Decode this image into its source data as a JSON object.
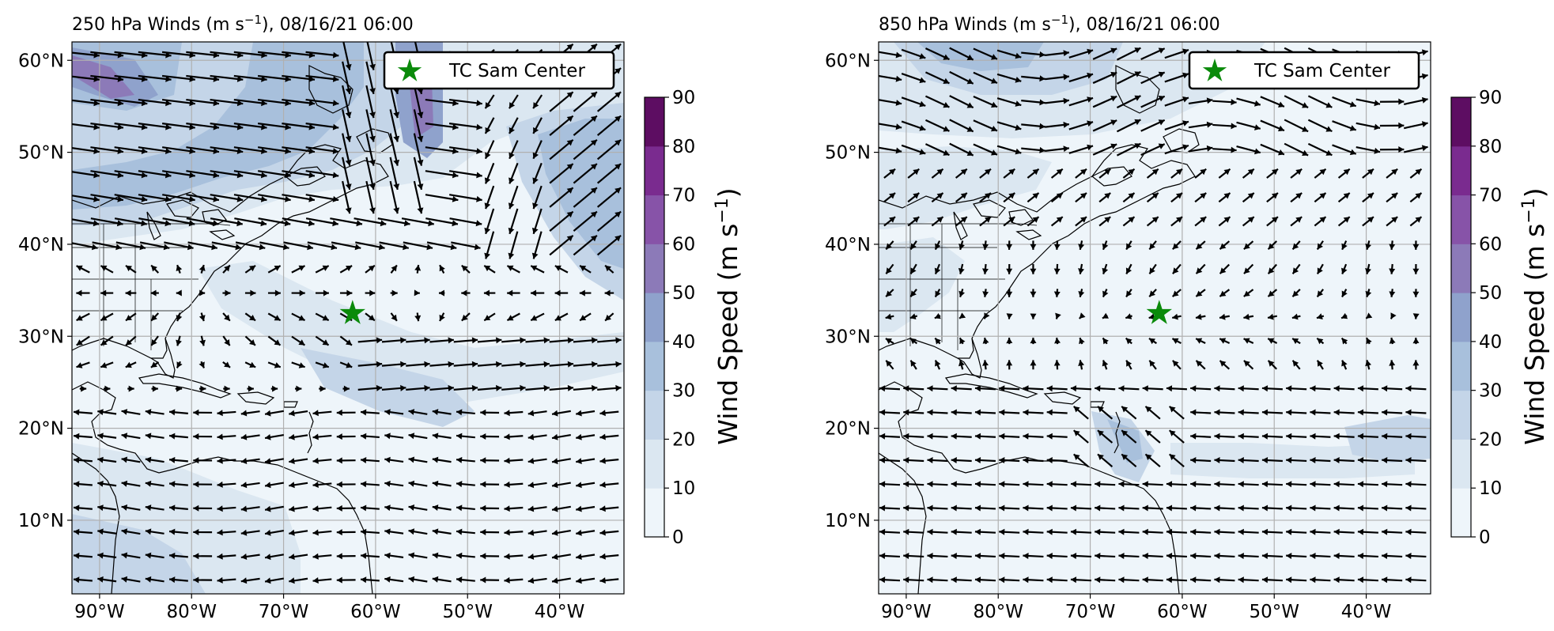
{
  "colors": {
    "levels": [
      "#eef5fa",
      "#dbe7f1",
      "#c4d5e8",
      "#a8c0dc",
      "#8fa2cc",
      "#8c7ab8",
      "#8753a8",
      "#7a2b8f",
      "#5d0d62"
    ],
    "star": "#0a8a0a",
    "grid": "#b0b0b0"
  },
  "shared": {
    "lat_ticks": [
      "10°N",
      "20°N",
      "30°N",
      "40°N",
      "50°N",
      "60°N"
    ],
    "lon_ticks": [
      "90°W",
      "80°W",
      "70°W",
      "60°W",
      "50°W",
      "40°W"
    ],
    "colorbar_ticks": [
      "0",
      "10",
      "20",
      "30",
      "40",
      "50",
      "60",
      "70",
      "80",
      "90"
    ],
    "legend_label": "TC Sam Center"
  },
  "panels": [
    {
      "title": "250 hPa Winds (m s",
      "title_sup": "−1",
      "title_rest": "), 08/16/21 06:00",
      "colorbar_label": "Wind Speed (m s",
      "colorbar_sup": "−1",
      "colorbar_close": ")"
    },
    {
      "title": "850 hPa Winds (m s",
      "title_sup": "−1",
      "title_rest": "), 08/16/21 06:00",
      "colorbar_label": "Wind Speed (m s",
      "colorbar_sup": "−1",
      "colorbar_close": ")"
    }
  ],
  "map_data": {
    "projection": "PlateCarree",
    "lon_range": [
      -93,
      -33
    ],
    "lat_range": [
      2,
      62
    ],
    "lon_ticks": [
      -90,
      -80,
      -70,
      -60,
      -50,
      -40
    ],
    "lat_ticks": [
      10,
      20,
      30,
      40,
      50,
      60
    ],
    "storm_center": {
      "lon": -62.5,
      "lat": 32.5,
      "label": "TC Sam Center"
    },
    "colorbar": {
      "min": 0,
      "max": 90,
      "step": 10
    }
  }
}
